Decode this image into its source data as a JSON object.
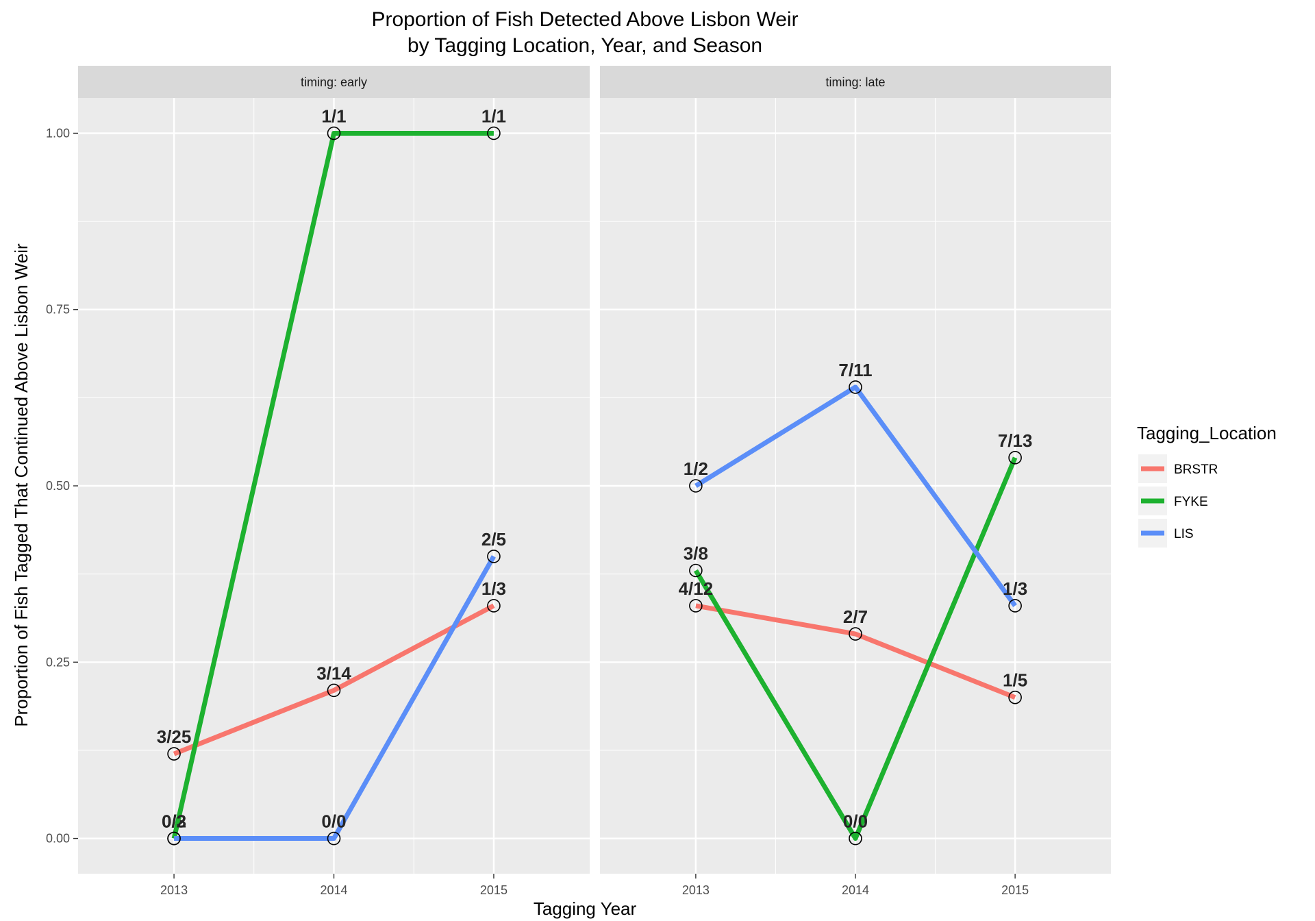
{
  "chart_data": {
    "type": "line",
    "title": "Proportion of Fish Detected Above Lisbon Weir",
    "subtitle": "by Tagging Location, Year, and Season",
    "xlabel": "Tagging Year",
    "ylabel": "Proportion of Fish Tagged That Continued Above Lisbon Weir",
    "x": [
      2013,
      2014,
      2015
    ],
    "x_tick_labels": [
      "2013",
      "2014",
      "2015"
    ],
    "ylim": [
      -0.05,
      1.05
    ],
    "y_ticks": [
      0,
      0.25,
      0.5,
      0.75,
      1
    ],
    "y_tick_labels": [
      "0.00",
      "0.25",
      "0.50",
      "0.75",
      "1.00"
    ],
    "grid": true,
    "legend": {
      "title": "Tagging_Location",
      "position": "right",
      "entries": [
        "BRSTR",
        "FYKE",
        "LIS"
      ]
    },
    "series_colors": {
      "BRSTR": "#F8766D",
      "FYKE": "#1DB12F",
      "LIS": "#5B8EF8"
    },
    "panels": [
      {
        "strip": "timing: early",
        "series": [
          {
            "name": "BRSTR",
            "values": [
              0.12,
              0.21,
              0.33
            ],
            "labels": [
              "3/25",
              "3/14",
              "1/3"
            ]
          },
          {
            "name": "FYKE",
            "values": [
              0.0,
              1.0,
              1.0
            ],
            "labels": [
              "0/3",
              "1/1",
              "1/1"
            ]
          },
          {
            "name": "LIS",
            "values": [
              0.0,
              0.0,
              0.4
            ],
            "labels": [
              "0/2",
              "0/0",
              "2/5"
            ]
          }
        ]
      },
      {
        "strip": "timing: late",
        "series": [
          {
            "name": "BRSTR",
            "values": [
              0.33,
              0.29,
              0.2
            ],
            "labels": [
              "4/12",
              "2/7",
              "1/5"
            ]
          },
          {
            "name": "FYKE",
            "values": [
              0.38,
              0.0,
              0.54
            ],
            "labels": [
              "3/8",
              "0/0",
              "7/13"
            ]
          },
          {
            "name": "LIS",
            "values": [
              0.5,
              0.64,
              0.33
            ],
            "labels": [
              "1/2",
              "7/11",
              "1/3"
            ]
          }
        ]
      }
    ]
  }
}
